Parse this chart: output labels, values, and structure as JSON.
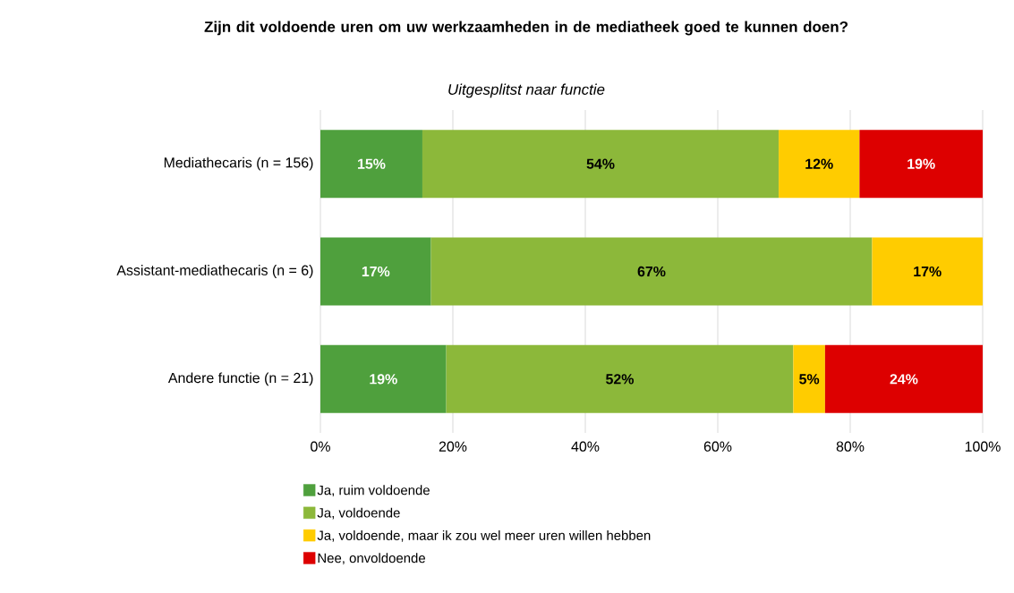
{
  "chart_data": {
    "type": "bar",
    "orientation": "horizontal",
    "stacked": true,
    "title": "Zijn dit voldoende uren om uw werkzaamheden in de mediatheek goed te kunnen doen?",
    "subtitle": "Uitgesplitst naar functie",
    "categories": [
      "Mediathecaris (n = 156)",
      "Assistant-mediathecaris (n = 6)",
      "Andere functie (n = 21)"
    ],
    "series": [
      {
        "name": "Ja, ruim voldoende",
        "color": "#4fa03d",
        "values": [
          15.4,
          16.7,
          19.0
        ],
        "value_labels": [
          "15%",
          "17%",
          "19%"
        ]
      },
      {
        "name": "Ja, voldoende",
        "color": "#8cb83a",
        "values": [
          53.8,
          66.6,
          52.4
        ],
        "value_labels": [
          "54%",
          "67%",
          "52%"
        ]
      },
      {
        "name": "Ja, voldoende, maar ik zou wel meer uren willen hebben",
        "color": "#ffcc00",
        "values": [
          12.2,
          16.7,
          4.8
        ],
        "value_labels": [
          "12%",
          "17%",
          "5%"
        ]
      },
      {
        "name": "Nee, onvoldoende",
        "color": "#dd0000",
        "values": [
          18.6,
          null,
          23.8
        ],
        "value_labels": [
          "19%",
          null,
          "24%"
        ]
      }
    ],
    "xlim": [
      0,
      100
    ],
    "xticks": [
      {
        "value": 0,
        "label": "0%"
      },
      {
        "value": 20,
        "label": "20%"
      },
      {
        "value": 40,
        "label": "40%"
      },
      {
        "value": 60,
        "label": "60%"
      },
      {
        "value": 80,
        "label": "80%"
      },
      {
        "value": 100,
        "label": "100%"
      }
    ],
    "grid": "x",
    "legend": "bottom"
  }
}
